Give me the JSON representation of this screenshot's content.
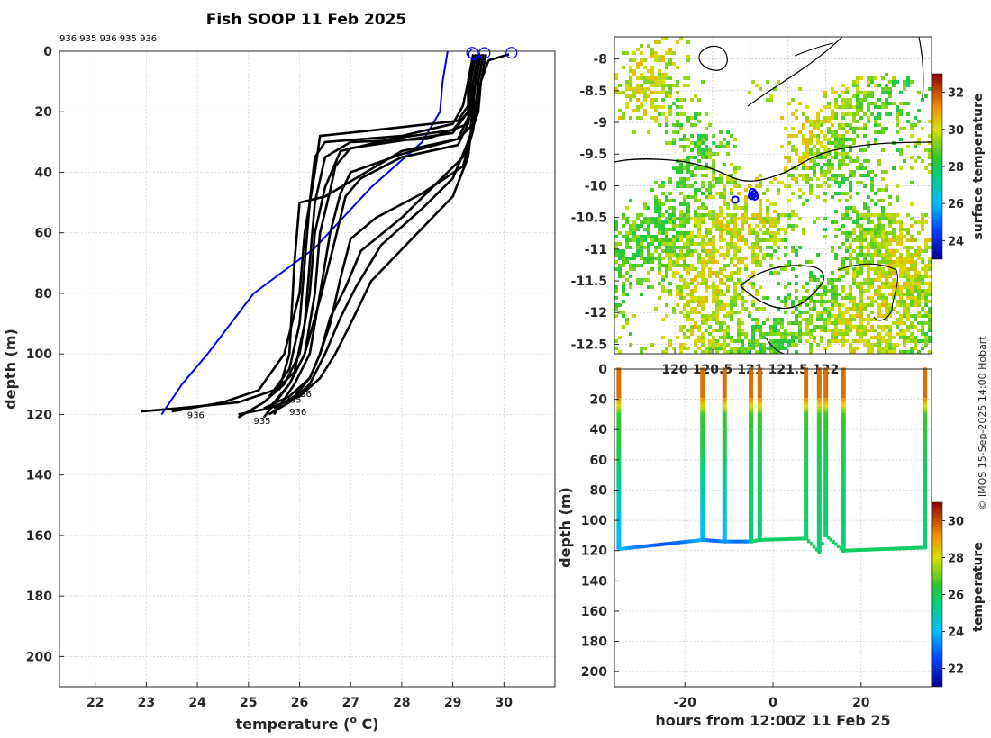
{
  "title": "Fish SOOP 11 Feb 2025",
  "credit": "© IMOS 15-Sep-2025 14:00 Hobart",
  "profile_ids_label": "936 935 936 935 936",
  "colors": {
    "profile": "#000000",
    "climatology": "#0000e6",
    "marker": "#0000ff"
  },
  "chart_data": [
    {
      "type": "line",
      "name": "temperature-profiles",
      "title": "Fish SOOP 11 Feb 2025",
      "xlabel": "temperature (° C)",
      "xlabel_main": "temperature (",
      "xlabel_sup": "o",
      "xlabel_tail": " C)",
      "ylabel": "depth (m)",
      "xlim": [
        21.3,
        31.0
      ],
      "ylim": [
        0,
        210
      ],
      "xticks": [
        22,
        23,
        24,
        25,
        26,
        27,
        28,
        29,
        30
      ],
      "yticks": [
        0,
        20,
        40,
        60,
        80,
        100,
        120,
        140,
        160,
        180,
        200
      ],
      "grid": true,
      "series": [
        {
          "name": "climatology",
          "temp": [
            28.9,
            28.85,
            28.8,
            28.75,
            28.4,
            27.4,
            26.3,
            25.1,
            24.2,
            23.7,
            23.3
          ],
          "depth": [
            0,
            5,
            10,
            20,
            30,
            45,
            65,
            80,
            100,
            110,
            120
          ]
        },
        {
          "name": "p1",
          "temp": [
            29.4,
            29.3,
            29.2,
            29.0,
            28.0,
            26.5,
            26.3,
            26.2,
            26.1,
            26.0,
            25.8,
            25.5,
            24.8,
            23.6,
            22.9
          ],
          "depth": [
            1,
            10,
            18,
            24,
            28,
            30,
            35,
            50,
            70,
            90,
            105,
            112,
            116,
            118,
            119
          ]
        },
        {
          "name": "p2",
          "temp": [
            29.5,
            29.4,
            29.3,
            29.1,
            27.5,
            26.4,
            26.3,
            26.1,
            26.0,
            25.7,
            25.2,
            24.5,
            23.5
          ],
          "depth": [
            1,
            10,
            18,
            23,
            26,
            28,
            40,
            60,
            80,
            100,
            112,
            116,
            119
          ]
        },
        {
          "name": "p3",
          "temp": [
            29.4,
            29.3,
            29.3,
            29.0,
            27.8,
            26.8,
            26.5,
            26.3,
            26.2,
            26.0,
            25.7,
            25.3,
            24.8
          ],
          "depth": [
            1,
            10,
            20,
            26,
            29,
            33,
            45,
            60,
            80,
            100,
            110,
            116,
            121
          ]
        },
        {
          "name": "p4",
          "temp": [
            29.45,
            29.35,
            29.3,
            29.0,
            27.0,
            26.7,
            26.6,
            26.4,
            26.3,
            26.1,
            25.8,
            25.3
          ],
          "depth": [
            1,
            10,
            20,
            27,
            32,
            38,
            46,
            60,
            80,
            100,
            110,
            121
          ]
        },
        {
          "name": "p5",
          "temp": [
            29.4,
            29.35,
            29.3,
            29.1,
            28.0,
            27.0,
            26.8,
            26.6,
            26.4,
            26.2,
            25.9,
            25.5
          ],
          "depth": [
            1,
            10,
            22,
            29,
            34,
            40,
            47,
            60,
            80,
            100,
            110,
            120
          ]
        },
        {
          "name": "p6",
          "temp": [
            29.5,
            29.4,
            29.3,
            29.1,
            28.0,
            27.2,
            26.9,
            26.7,
            26.4,
            26.1,
            25.8,
            25.4
          ],
          "depth": [
            1,
            10,
            24,
            31,
            35,
            42,
            48,
            62,
            82,
            100,
            110,
            118
          ]
        },
        {
          "name": "p7",
          "temp": [
            29.5,
            29.45,
            29.3,
            28.5,
            27.0,
            26.5,
            26.3,
            26.2,
            26.1,
            25.9,
            25.4
          ],
          "depth": [
            1,
            10,
            24,
            29,
            30,
            35,
            50,
            70,
            90,
            106,
            114
          ]
        },
        {
          "name": "p8",
          "temp": [
            29.55,
            29.45,
            29.35,
            29.1,
            28.0,
            26.5,
            26.0,
            25.9,
            25.8,
            25.6
          ],
          "depth": [
            1,
            10,
            25,
            29,
            33,
            48,
            50,
            70,
            100,
            112
          ]
        },
        {
          "name": "p9",
          "temp": [
            29.6,
            29.5,
            29.4,
            29.2,
            28.4,
            27.5,
            27.0,
            26.8,
            26.6,
            26.4,
            26.2,
            25.8,
            25.3
          ],
          "depth": [
            1,
            10,
            26,
            38,
            47,
            55,
            62,
            75,
            90,
            100,
            108,
            114,
            118
          ]
        },
        {
          "name": "p10",
          "temp": [
            29.6,
            29.5,
            29.45,
            29.2,
            28.6,
            28.0,
            27.2,
            26.9,
            26.6,
            26.4,
            26.2,
            25.9,
            25.5
          ],
          "depth": [
            1,
            10,
            22,
            35,
            45,
            55,
            66,
            78,
            88,
            100,
            108,
            114,
            118
          ]
        },
        {
          "name": "p11",
          "temp": [
            29.65,
            29.55,
            29.5,
            29.3,
            29.0,
            28.4,
            27.6,
            27.1,
            26.8,
            26.5,
            26.2,
            25.8,
            25.4
          ],
          "depth": [
            1,
            10,
            20,
            30,
            42,
            52,
            64,
            78,
            88,
            100,
            110,
            116,
            120
          ]
        },
        {
          "name": "p12",
          "temp": [
            30.1,
            29.7,
            29.55,
            29.4,
            29.3,
            29.0,
            28.2,
            27.4,
            27.0,
            26.7,
            26.4,
            26.0,
            25.4,
            24.8
          ],
          "depth": [
            1,
            3,
            10,
            20,
            35,
            48,
            62,
            76,
            90,
            100,
            108,
            114,
            118,
            120
          ]
        }
      ],
      "surface_markers": [
        [
          29.38,
          0.5
        ],
        [
          29.42,
          1
        ],
        [
          29.62,
          0.6
        ],
        [
          30.15,
          0.5
        ]
      ],
      "annotations": [
        {
          "text": "936",
          "temp": 25.9,
          "depth": 113
        },
        {
          "text": "935",
          "temp": 25.7,
          "depth": 115
        },
        {
          "text": "936",
          "temp": 25.8,
          "depth": 119
        },
        {
          "text": "936",
          "temp": 23.8,
          "depth": 120
        },
        {
          "text": "935",
          "temp": 25.1,
          "depth": 122
        }
      ]
    },
    {
      "type": "heatmap",
      "name": "sst-map",
      "xticks": [
        "120",
        "120.5",
        "121",
        "121.5",
        "122"
      ],
      "xtick_values": [
        120,
        120.5,
        121,
        121.5,
        122
      ],
      "xlim": [
        119.2,
        123.4
      ],
      "ylim": [
        -12.65,
        -7.65
      ],
      "yticks": [
        "-8",
        "-8.5",
        "-9",
        "-9.5",
        "-10",
        "-10.5",
        "-11",
        "-11.5",
        "-12",
        "-12.5"
      ],
      "ytick_values": [
        -8,
        -8.5,
        -9,
        -9.5,
        -10,
        -10.5,
        -11,
        -11.5,
        -12,
        -12.5
      ],
      "colorbar_label": "surface temperature",
      "colorbar_ticks": [
        "24",
        "26",
        "28",
        "30",
        "32"
      ],
      "colorbar_tick_values": [
        24,
        26,
        28,
        30,
        32
      ],
      "colorbar_range": [
        23,
        33
      ],
      "stations": [
        [
          121.03,
          -10.1
        ],
        [
          121.05,
          -10.13
        ],
        [
          121.02,
          -10.16
        ],
        [
          121.06,
          -10.17
        ],
        [
          120.8,
          -10.22
        ]
      ]
    },
    {
      "type": "heatmap",
      "name": "time-depth-section",
      "xlabel": "hours from 12:00Z 11 Feb 25",
      "ylabel": "depth (m)",
      "xlim": [
        -36,
        36
      ],
      "ylim": [
        0,
        210
      ],
      "xticks": [
        -20,
        0,
        20
      ],
      "yticks": [
        0,
        20,
        40,
        60,
        80,
        100,
        120,
        140,
        160,
        180,
        200
      ],
      "colorbar_label": "temperature",
      "colorbar_ticks": [
        "22",
        "24",
        "26",
        "28",
        "30"
      ],
      "colorbar_tick_values": [
        22,
        24,
        26,
        28,
        30
      ],
      "colorbar_range": [
        21,
        31
      ],
      "casts_hours": [
        -35,
        -16,
        -11,
        -5,
        -3,
        7.5,
        10.5,
        12,
        16,
        34.5
      ],
      "bottom_depth": [
        119,
        113,
        114,
        114,
        113,
        112,
        121,
        110,
        120,
        118
      ]
    }
  ]
}
